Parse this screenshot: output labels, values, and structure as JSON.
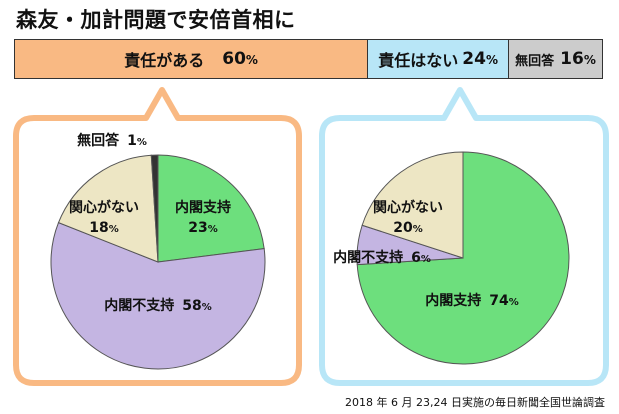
{
  "title": "森友・加計問題で安倍首相に",
  "source": "2018 年 6 月 23,24 日実施の毎日新聞全国世論調査",
  "colors": {
    "responsible": "#f9b983",
    "not_responsible": "#b8e6f7",
    "no_answer": "#cccccc",
    "support": "#6ddf7d",
    "not_support": "#c4b5e2",
    "indifferent": "#ede6c4",
    "no_answer_slice": "#333333",
    "frame_left": "#f9b983",
    "frame_right": "#b8e6f7"
  },
  "chart_data": [
    {
      "type": "bar",
      "orientation": "horizontal-stacked",
      "title": "森友・加計問題で安倍首相に",
      "categories": [
        "責任がある",
        "責任はない",
        "無回答"
      ],
      "values": [
        60,
        24,
        16
      ],
      "unit": "%"
    },
    {
      "type": "pie",
      "group": "責任がある",
      "slices": [
        {
          "label": "内閣支持",
          "value": 23
        },
        {
          "label": "内閣不支持",
          "value": 58
        },
        {
          "label": "関心がない",
          "value": 18
        },
        {
          "label": "無回答",
          "value": 1
        }
      ],
      "unit": "%"
    },
    {
      "type": "pie",
      "group": "責任はない",
      "slices": [
        {
          "label": "内閣支持",
          "value": 74
        },
        {
          "label": "内閣不支持",
          "value": 6
        },
        {
          "label": "関心がない",
          "value": 20
        }
      ],
      "unit": "%"
    }
  ]
}
